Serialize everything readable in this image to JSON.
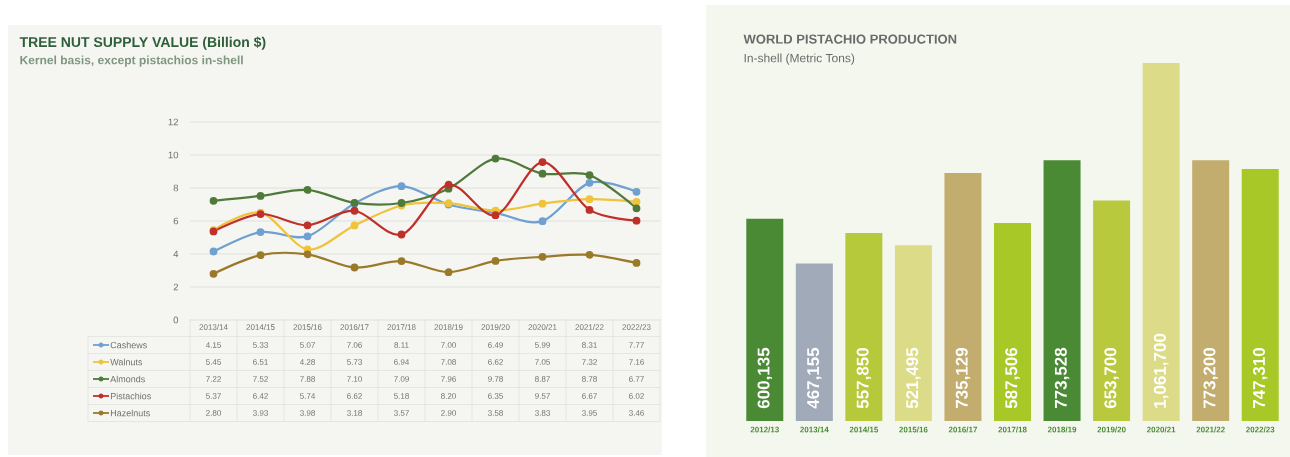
{
  "chart_data": [
    {
      "type": "line",
      "title": "TREE NUT SUPPLY VALUE (Billion $)",
      "subtitle": "Kernel basis, except pistachios in-shell",
      "categories": [
        "2013/14",
        "2014/15",
        "2015/16",
        "2016/17",
        "2017/18",
        "2018/19",
        "2019/20",
        "2020/21",
        "2021/22",
        "2022/23"
      ],
      "series": [
        {
          "name": "Cashews",
          "color": "#6fa0d0",
          "values": [
            4.15,
            5.33,
            5.07,
            7.06,
            8.11,
            7.0,
            6.49,
            5.99,
            8.31,
            7.77
          ],
          "value_labels": [
            "4.15",
            "5.33",
            "5.07",
            "7.06",
            "8.11",
            "7.00",
            "6.49",
            "5.99",
            "8.31",
            "7.77"
          ]
        },
        {
          "name": "Walnuts",
          "color": "#f0c33c",
          "values": [
            5.45,
            6.51,
            4.28,
            5.73,
            6.94,
            7.08,
            6.62,
            7.05,
            7.32,
            7.16
          ],
          "value_labels": [
            "5.45",
            "6.51",
            "4.28",
            "5.73",
            "6.94",
            "7.08",
            "6.62",
            "7.05",
            "7.32",
            "7.16"
          ]
        },
        {
          "name": "Almonds",
          "color": "#4f7a3a",
          "values": [
            7.22,
            7.52,
            7.88,
            7.1,
            7.09,
            7.96,
            9.78,
            8.87,
            8.78,
            6.77
          ],
          "value_labels": [
            "7.22",
            "7.52",
            "7.88",
            "7.10",
            "7.09",
            "7.96",
            "9.78",
            "8.87",
            "8.78",
            "6.77"
          ]
        },
        {
          "name": "Pistachios",
          "color": "#c0302a",
          "values": [
            5.37,
            6.42,
            5.74,
            6.62,
            5.18,
            8.2,
            6.35,
            9.57,
            6.67,
            6.02
          ],
          "value_labels": [
            "5.37",
            "6.42",
            "5.74",
            "6.62",
            "5.18",
            "8.20",
            "6.35",
            "9.57",
            "6.67",
            "6.02"
          ]
        },
        {
          "name": "Hazelnuts",
          "color": "#9a7a2a",
          "values": [
            2.8,
            3.93,
            3.98,
            3.18,
            3.57,
            2.9,
            3.58,
            3.83,
            3.95,
            3.46
          ],
          "value_labels": [
            "2.80",
            "3.93",
            "3.98",
            "3.18",
            "3.57",
            "2.90",
            "3.58",
            "3.83",
            "3.95",
            "3.46"
          ]
        }
      ],
      "ylim": [
        0,
        12
      ],
      "yticks": [
        0,
        2,
        4,
        6,
        8,
        10,
        12
      ],
      "grid": "y",
      "legend": "bottom",
      "marker": "circle"
    },
    {
      "type": "bar",
      "title": "WORLD PISTACHIO PRODUCTION",
      "subtitle": "In-shell (Metric Tons)",
      "categories": [
        "2012/13",
        "2013/14",
        "2014/15",
        "2015/16",
        "2016/17",
        "2017/18",
        "2018/19",
        "2019/20",
        "2020/21",
        "2021/22",
        "2022/23"
      ],
      "values": [
        600135,
        467155,
        557850,
        521495,
        735129,
        587506,
        773528,
        653700,
        1061700,
        773200,
        747310
      ],
      "value_labels": [
        "600,135",
        "467,155",
        "557,850",
        "521,495",
        "735,129",
        "587,506",
        "773,528",
        "653,700",
        "1,061,700",
        "773,200",
        "747,310"
      ],
      "colors": [
        "#4a8a35",
        "#a0aab8",
        "#b5c93a",
        "#dcdc88",
        "#c2ad6e",
        "#a8c828",
        "#4a8a35",
        "#b9c93e",
        "#dcdc88",
        "#c2ad6e",
        "#a8c828"
      ]
    }
  ]
}
